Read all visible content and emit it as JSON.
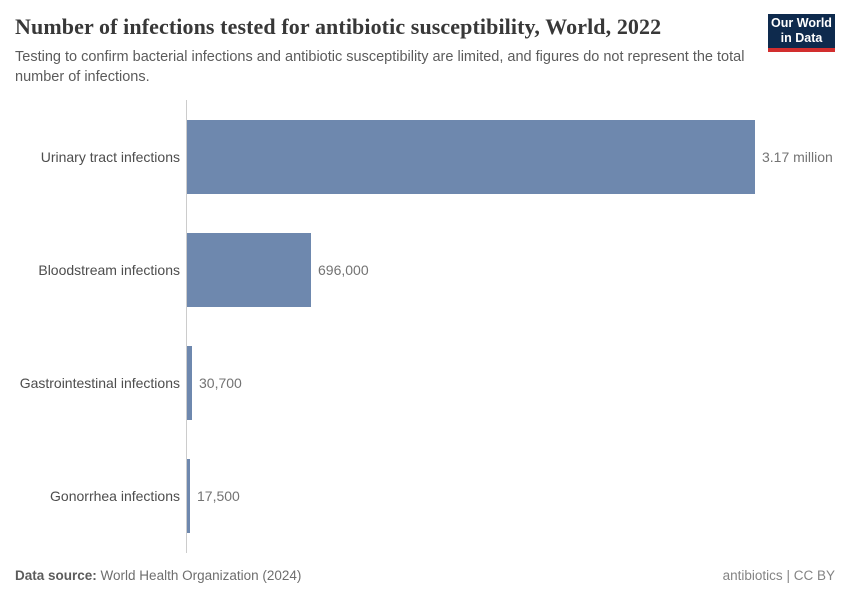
{
  "header": {
    "title": "Number of infections tested for antibiotic susceptibility, World, 2022",
    "subtitle": "Testing to confirm bacterial infections and antibiotic susceptibility are limited, and figures do not represent the total number of infections.",
    "logo": {
      "line1": "Our World",
      "line2": "in Data"
    }
  },
  "chart_data": {
    "type": "bar",
    "orientation": "horizontal",
    "title": "Number of infections tested for antibiotic susceptibility, World, 2022",
    "categories": [
      "Urinary tract infections",
      "Bloodstream infections",
      "Gastrointestinal infections",
      "Gonorrhea infections"
    ],
    "values": [
      3170000,
      696000,
      30700,
      17500
    ],
    "value_labels": [
      "3.17 million",
      "696,000",
      "30,700",
      "17,500"
    ],
    "xlim": [
      0,
      3170000
    ],
    "grid": false,
    "legend": "none",
    "bar_color": "#6e88ae"
  },
  "footer": {
    "data_source_label": "Data source:",
    "data_source_value": "World Health Organization (2024)",
    "note": "antibiotics",
    "separator": "|",
    "license": "CC BY"
  },
  "colors": {
    "bar": "#6e88ae",
    "axis_line": "#cccccc",
    "logo_background": "#0e2a4d",
    "logo_underline": "#d22e2e",
    "title_text": "#383838",
    "subtitle_text": "#5b5b5b"
  }
}
